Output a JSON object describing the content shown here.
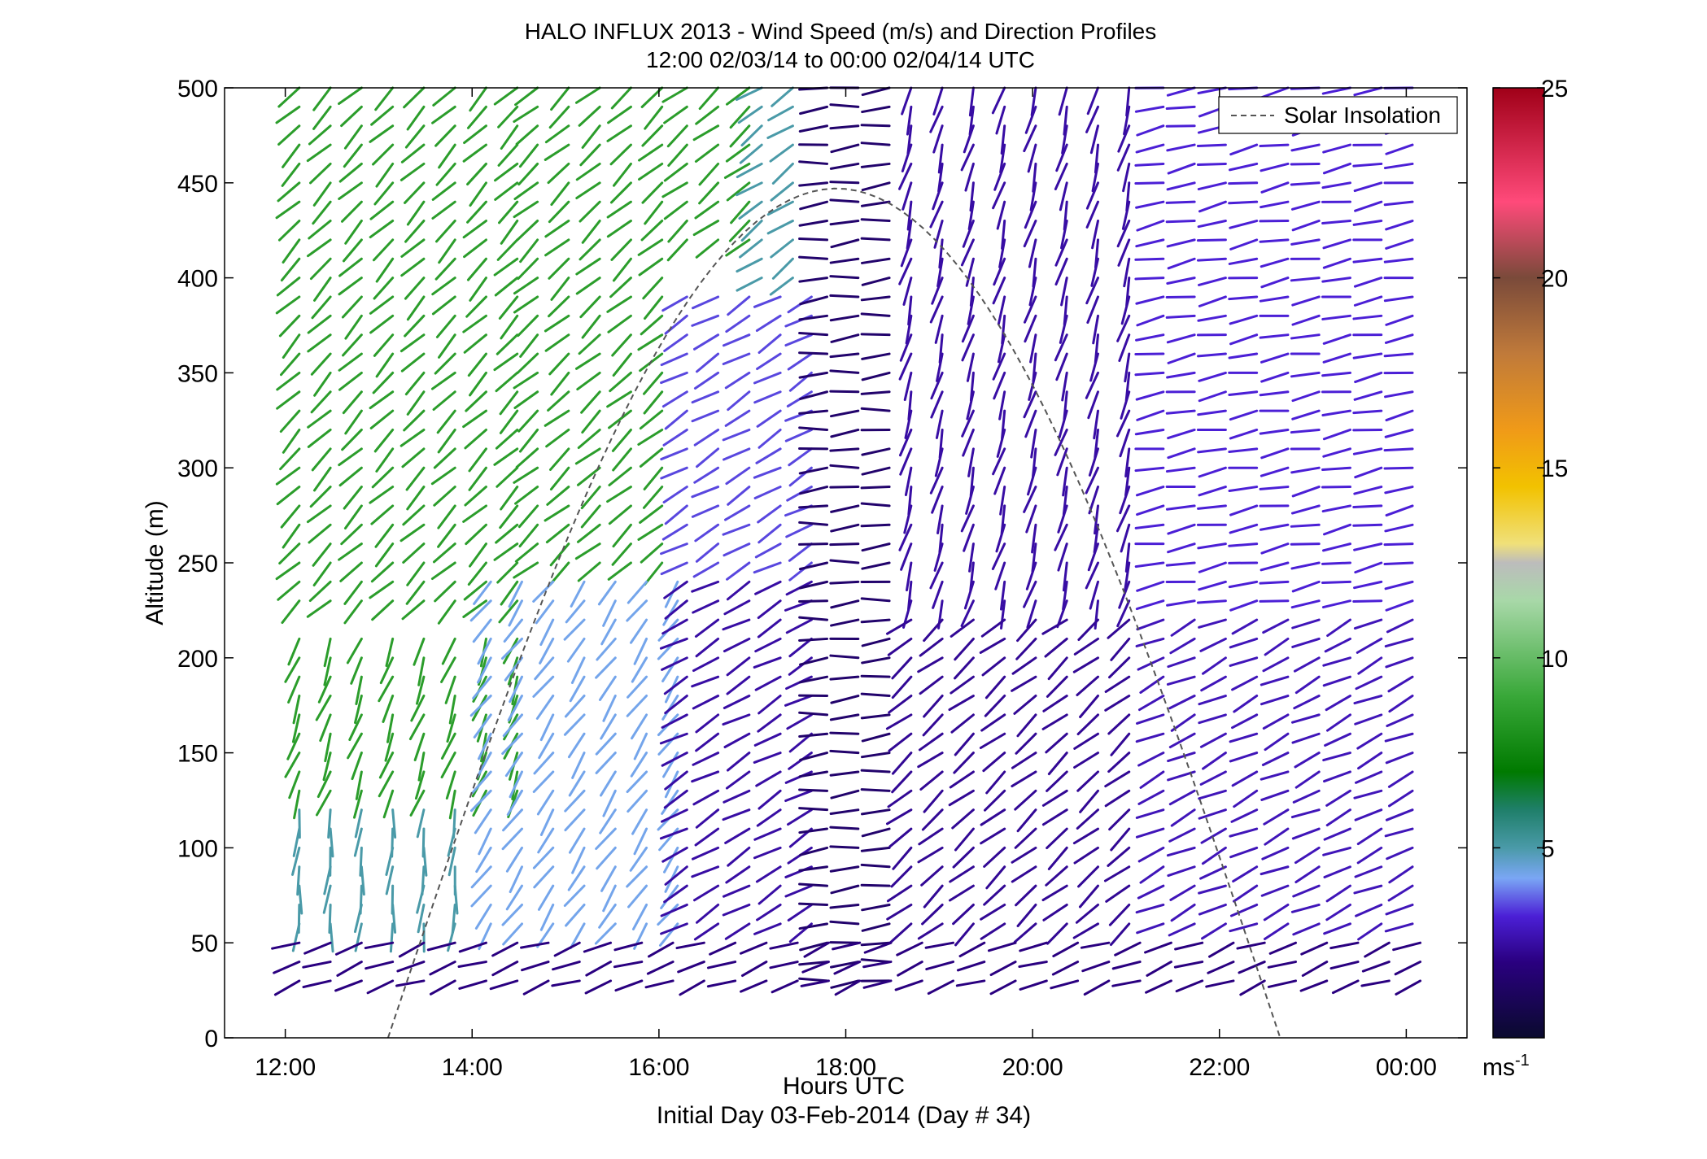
{
  "chart_data": {
    "type": "wind-barb-profile",
    "title": "HALO INFLUX 2013 - Wind Speed (m/s) and Direction Profiles",
    "subtitle": "12:00 02/03/14 to 00:00 02/04/14  UTC",
    "xlabel": "Hours UTC",
    "xlabel2": "Initial Day 03-Feb-2014 (Day # 34)",
    "ylabel": "Altitude (m)",
    "xlim": [
      11.35,
      24.65
    ],
    "ylim": [
      0,
      500
    ],
    "x_ticks": [
      {
        "value": 12,
        "label": "12:00"
      },
      {
        "value": 14,
        "label": "14:00"
      },
      {
        "value": 16,
        "label": "16:00"
      },
      {
        "value": 18,
        "label": "18:00"
      },
      {
        "value": 20,
        "label": "20:00"
      },
      {
        "value": 22,
        "label": "22:00"
      },
      {
        "value": 24,
        "label": "00:00"
      }
    ],
    "y_ticks": [
      {
        "value": 0,
        "label": "0"
      },
      {
        "value": 50,
        "label": "50"
      },
      {
        "value": 100,
        "label": "100"
      },
      {
        "value": 150,
        "label": "150"
      },
      {
        "value": 200,
        "label": "200"
      },
      {
        "value": 250,
        "label": "250"
      },
      {
        "value": 300,
        "label": "300"
      },
      {
        "value": 350,
        "label": "350"
      },
      {
        "value": 400,
        "label": "400"
      },
      {
        "value": 450,
        "label": "450"
      },
      {
        "value": 500,
        "label": "500"
      }
    ],
    "legend": {
      "label": "Solar Insolation",
      "placement": "top-right"
    },
    "solar_insolation": {
      "start_hour": 13.1,
      "peak_hour": 17.9,
      "end_hour": 22.65,
      "peak_altitude": 447
    },
    "colorbar": {
      "range": [
        0,
        25
      ],
      "ticks": [
        {
          "value": 5,
          "label": "5"
        },
        {
          "value": 10,
          "label": "10"
        },
        {
          "value": 15,
          "label": "15"
        },
        {
          "value": 20,
          "label": "20"
        },
        {
          "value": 25,
          "label": "25"
        }
      ],
      "unit_label": "ms",
      "unit_exponent": "-1",
      "stops": [
        [
          0,
          "#0a0a2e"
        ],
        [
          2,
          "#2a0080"
        ],
        [
          3.2,
          "#4b1fd6"
        ],
        [
          4.2,
          "#7aa6f5"
        ],
        [
          5,
          "#4a9aa8"
        ],
        [
          6,
          "#1f7f6a"
        ],
        [
          7,
          "#007a00"
        ],
        [
          9,
          "#39a839"
        ],
        [
          11.5,
          "#a8d8a8"
        ],
        [
          12.5,
          "#bcbcbc"
        ],
        [
          13,
          "#f0e07a"
        ],
        [
          14.5,
          "#f2c200"
        ],
        [
          16,
          "#f09a18"
        ],
        [
          18,
          "#c07a3a"
        ],
        [
          20,
          "#7a4a3a"
        ],
        [
          22,
          "#ff4a7a"
        ],
        [
          25,
          "#a00018"
        ]
      ]
    },
    "regimes": [
      {
        "hours": [
          12.15,
          14.6
        ],
        "altitudes": [
          230,
          500
        ],
        "speed": 8.5,
        "direction_deg": 225
      },
      {
        "hours": [
          12.15,
          14.6
        ],
        "altitudes": [
          130,
          210
        ],
        "speed": 8.5,
        "direction_deg": 200
      },
      {
        "hours": [
          12.15,
          14.0
        ],
        "altitudes": [
          60,
          120
        ],
        "speed": 5,
        "direction_deg": 185
      },
      {
        "hours": [
          14.7,
          16.2
        ],
        "altitudes": [
          250,
          500
        ],
        "speed": 8.5,
        "direction_deg": 228
      },
      {
        "hours": [
          14.2,
          16.2
        ],
        "altitudes": [
          60,
          240
        ],
        "speed": 4.3,
        "direction_deg": 215
      },
      {
        "hours": [
          16.3,
          17.1
        ],
        "altitudes": [
          420,
          500
        ],
        "speed": 8.5,
        "direction_deg": 230
      },
      {
        "hours": [
          17.1,
          17.7
        ],
        "altitudes": [
          400,
          500
        ],
        "speed": 5,
        "direction_deg": 235
      },
      {
        "hours": [
          16.3,
          17.7
        ],
        "altitudes": [
          250,
          390
        ],
        "speed": 3.5,
        "direction_deg": 240
      },
      {
        "hours": [
          16.3,
          17.7
        ],
        "altitudes": [
          60,
          240
        ],
        "speed": 2.5,
        "direction_deg": 240
      },
      {
        "hours": [
          17.8,
          18.6
        ],
        "altitudes": [
          30,
          500
        ],
        "speed": 1.5,
        "direction_deg": 265
      },
      {
        "hours": [
          18.7,
          21.3
        ],
        "altitudes": [
          230,
          500
        ],
        "speed": 2.5,
        "direction_deg": 195
      },
      {
        "hours": [
          18.7,
          21.3
        ],
        "altitudes": [
          60,
          220
        ],
        "speed": 2.3,
        "direction_deg": 230
      },
      {
        "hours": [
          21.4,
          24.2
        ],
        "altitudes": [
          230,
          500
        ],
        "speed": 3.2,
        "direction_deg": 260
      },
      {
        "hours": [
          21.4,
          24.2
        ],
        "altitudes": [
          60,
          220
        ],
        "speed": 2.8,
        "direction_deg": 245
      },
      {
        "hours": [
          12.15,
          24.2
        ],
        "altitudes": [
          30,
          50
        ],
        "speed": 2.0,
        "direction_deg": 250
      }
    ]
  }
}
